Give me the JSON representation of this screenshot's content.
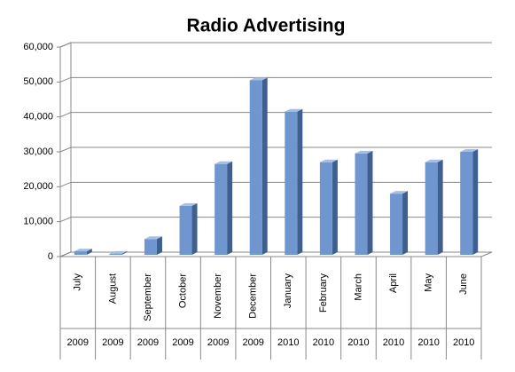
{
  "chart_data": {
    "type": "bar",
    "title": "Radio Advertising",
    "categories": [
      "July",
      "August",
      "September",
      "October",
      "November",
      "December",
      "January",
      "February",
      "March",
      "April",
      "May",
      "June"
    ],
    "years": [
      "2009",
      "2009",
      "2009",
      "2009",
      "2009",
      "2009",
      "2010",
      "2010",
      "2010",
      "2010",
      "2010",
      "2010"
    ],
    "values": [
      1000,
      300,
      4500,
      14000,
      26000,
      50000,
      41000,
      26500,
      29000,
      17500,
      26500,
      29500
    ],
    "color": "#7096cf",
    "ylim": [
      0,
      60000
    ],
    "yticks": [
      0,
      {
        "value": 10000,
        "label": "10,000"
      },
      {
        "value": 20000,
        "label": "20,000"
      },
      {
        "value": 30000,
        "label": "30,000"
      },
      {
        "value": 40000,
        "label": "40,000"
      },
      {
        "value": 50000,
        "label": "50,000"
      },
      {
        "value": 60000,
        "label": "60,000"
      }
    ],
    "grid": true
  }
}
